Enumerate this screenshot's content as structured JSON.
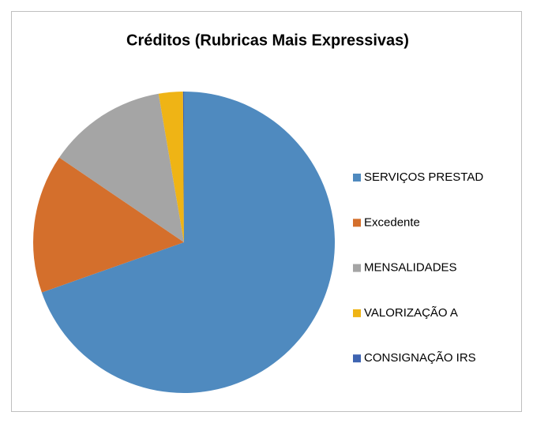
{
  "chart_data": {
    "type": "pie",
    "title": "Créditos (Rubricas Mais Expressivas)",
    "legend": "right",
    "series": [
      {
        "name": "SERVIÇOS PRESTAD",
        "color": "#4f8abf",
        "values": [
          69.6
        ]
      },
      {
        "name": "Excedente",
        "color": "#d46f2c",
        "values": [
          14.9
        ]
      },
      {
        "name": "MENSALIDADES",
        "color": "#a5a5a5",
        "values": [
          12.8
        ]
      },
      {
        "name": "VALORIZAÇÃO A",
        "color": "#efb415",
        "values": [
          2.6
        ]
      },
      {
        "name": "CONSIGNAÇÃO IRS",
        "color": "#3e64b1",
        "values": [
          0.1
        ]
      }
    ]
  }
}
